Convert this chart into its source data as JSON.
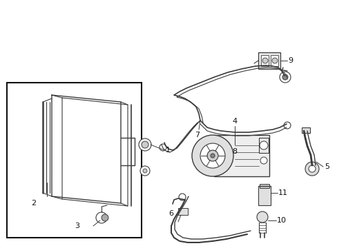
{
  "bg_color": "#ffffff",
  "line_color": "#3a3a3a",
  "label_color": "#111111",
  "fig_width": 4.89,
  "fig_height": 3.6,
  "dpi": 100
}
